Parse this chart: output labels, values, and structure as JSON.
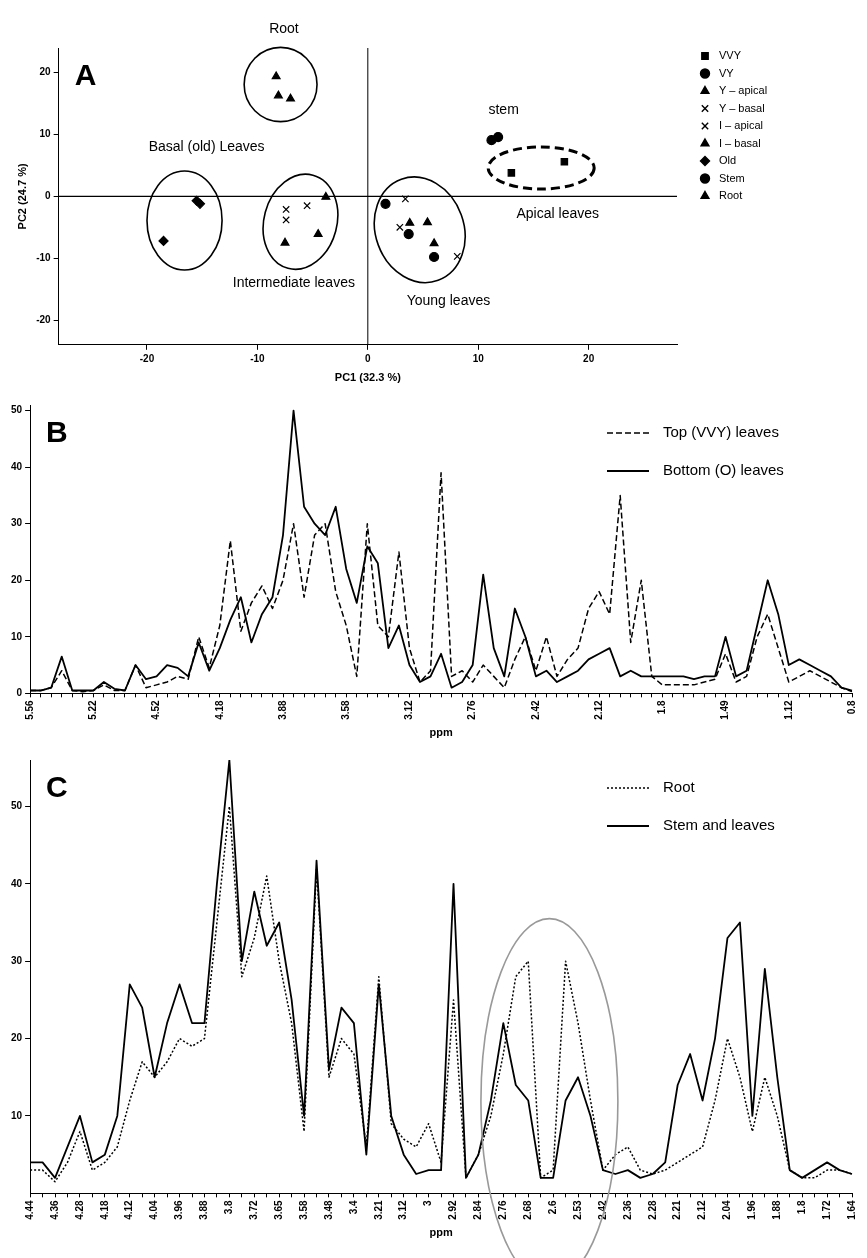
{
  "chart_data": [
    {
      "type": "scatter",
      "title": "A",
      "xlabel": "PC1 (32.3 %)",
      "ylabel": "PC2 (24.7 %)",
      "xlim": [
        -28,
        28
      ],
      "ylim": [
        -24,
        24
      ],
      "xticks": [
        -20,
        -10,
        0,
        10,
        20
      ],
      "yticks": [
        -20,
        -10,
        0,
        10,
        20
      ],
      "legend": "right",
      "series": [
        {
          "name": "VVY",
          "color": "#000000",
          "marker": "square",
          "x": [
            13.0,
            17.8
          ],
          "values": [
            3.8,
            5.6
          ]
        },
        {
          "name": "VY",
          "color": "#000000",
          "marker": "circle",
          "x": [
            1.6,
            3.7,
            6.0
          ],
          "values": [
            -1.2,
            -6.1,
            -9.8
          ]
        },
        {
          "name": "Y – apical",
          "color": "#000000",
          "marker": "triangle",
          "x": [
            3.8,
            5.4,
            6.0
          ],
          "values": [
            -4.3,
            -4.2,
            -7.6
          ]
        },
        {
          "name": "Y – basal",
          "color": "#000000",
          "marker": "cross",
          "x": [
            3.4,
            2.9,
            8.1
          ],
          "values": [
            -0.4,
            -5.0,
            -9.7
          ]
        },
        {
          "name": "I – apical",
          "color": "#000000",
          "marker": "cross",
          "x": [
            -7.4,
            -7.4,
            -5.5
          ],
          "values": [
            -2.1,
            -3.8,
            -1.5
          ]
        },
        {
          "name": "I – basal",
          "color": "#000000",
          "marker": "triangle",
          "x": [
            -3.8,
            -4.5,
            -7.5
          ],
          "values": [
            -0.1,
            -6.1,
            -7.5
          ]
        },
        {
          "name": "Old",
          "color": "#000000",
          "marker": "diamond",
          "x": [
            -15.5,
            -15.2,
            -18.5
          ],
          "values": [
            -0.7,
            -1.2,
            -7.2
          ]
        },
        {
          "name": "Stem",
          "color": "#000000",
          "marker": "circle",
          "x": [
            11.2,
            11.8
          ],
          "values": [
            9.1,
            9.6
          ]
        },
        {
          "name": "Root",
          "color": "#000000",
          "marker": "triangle",
          "x": [
            -8.3,
            -8.1,
            -7.0
          ],
          "values": [
            19.4,
            16.3,
            15.8
          ]
        }
      ],
      "ref_lines": [
        {
          "axis": "x",
          "value": 0,
          "color": "#000000"
        },
        {
          "axis": "y",
          "value": 0,
          "color": "#000000"
        }
      ],
      "annotations": [
        "Root",
        "stem",
        "Basal (old) Leaves",
        "Intermediate leaves",
        "Young leaves",
        "Apical leaves"
      ]
    },
    {
      "type": "line",
      "title": "B",
      "xlabel": "ppm",
      "ylim": [
        0,
        51
      ],
      "yticks": [
        0,
        10,
        20,
        30,
        40,
        50
      ],
      "legend": "top right",
      "marker": "none",
      "categories": [
        "5.56",
        null,
        null,
        null,
        null,
        null,
        "5.22",
        null,
        null,
        null,
        null,
        null,
        "4.52",
        null,
        null,
        null,
        null,
        null,
        "4.18",
        null,
        null,
        null,
        null,
        null,
        "3.88",
        null,
        null,
        null,
        null,
        null,
        "3.58",
        null,
        null,
        null,
        null,
        null,
        "3.12",
        null,
        null,
        null,
        null,
        null,
        "2.76",
        null,
        null,
        null,
        null,
        null,
        "2.42",
        null,
        null,
        null,
        null,
        null,
        "2.12",
        null,
        null,
        null,
        null,
        null,
        "1.8",
        null,
        null,
        null,
        null,
        null,
        "1.49",
        null,
        null,
        null,
        null,
        null,
        "1.12",
        null,
        null,
        null,
        null,
        null,
        "0.8"
      ],
      "series": [
        {
          "name": "Top (VVY) leaves",
          "color": "#000000",
          "line_style": "dashed",
          "values": [
            0.5,
            0.5,
            1,
            4,
            0.5,
            0.3,
            0.5,
            1.5,
            0.5,
            0.5,
            5,
            1,
            1.5,
            2,
            3,
            2.5,
            10,
            4.5,
            12,
            27,
            11,
            16,
            19,
            15,
            20,
            30,
            17,
            28,
            30,
            18,
            12,
            3,
            30,
            12,
            10,
            25,
            8,
            2,
            4,
            39,
            3,
            4,
            2,
            5,
            3,
            1,
            6,
            10,
            4,
            10,
            3,
            6,
            8,
            15,
            18,
            14,
            35,
            9,
            20,
            3,
            1.5,
            1.5,
            1.5,
            1.5,
            2,
            2.5,
            7,
            2,
            3,
            10,
            14,
            8,
            2,
            3,
            4,
            3,
            2,
            1,
            0.3
          ]
        },
        {
          "name": "Bottom (O) leaves",
          "color": "#000000",
          "line_style": "solid",
          "values": [
            0.5,
            0.5,
            1,
            6.5,
            0.5,
            0.5,
            0.5,
            2,
            0.8,
            0.5,
            5,
            2.5,
            3,
            5,
            4.5,
            3,
            9,
            4,
            8,
            13,
            17,
            9,
            14,
            17,
            28,
            50,
            33,
            30,
            28,
            33,
            22,
            16,
            26,
            23,
            8,
            12,
            5,
            2,
            3,
            7,
            1,
            2,
            5,
            21,
            8,
            3,
            15,
            10,
            3,
            4,
            2,
            3,
            4,
            6,
            7,
            8,
            3,
            4,
            3,
            3,
            3,
            3,
            3,
            2.5,
            3,
            3,
            10,
            3,
            4,
            12,
            20,
            14,
            5,
            6,
            5,
            4,
            3,
            1,
            0.5
          ]
        }
      ]
    },
    {
      "type": "line",
      "title": "C",
      "xlabel": "ppm",
      "ylim": [
        0,
        56
      ],
      "yticks": [
        10,
        20,
        30,
        40,
        50
      ],
      "legend": "top right",
      "marker": "none",
      "categories": [
        "4.44",
        null,
        "4.36",
        null,
        "4.28",
        null,
        "4.18",
        null,
        "4.12",
        null,
        "4.04",
        null,
        "3.96",
        null,
        "3.88",
        null,
        "3.8",
        null,
        "3.72",
        null,
        "3.65",
        null,
        "3.58",
        null,
        "3.48",
        null,
        "3.4",
        null,
        "3.21",
        null,
        "3.12",
        null,
        "3",
        null,
        "2.92",
        null,
        "2.84",
        null,
        "2.76",
        null,
        "2.68",
        null,
        "2.6",
        null,
        "2.53",
        null,
        "2.42",
        null,
        "2.36",
        null,
        "2.28",
        null,
        "2.21",
        null,
        "2.12",
        null,
        "2.04",
        null,
        "1.96",
        null,
        "1.88",
        null,
        "1.8",
        null,
        "1.72",
        null,
        "1.64"
      ],
      "series": [
        {
          "name": "Root",
          "color": "#000000",
          "line_style": "dotted",
          "values": [
            3,
            3,
            1.5,
            4,
            8,
            3,
            4,
            6,
            12,
            17,
            15,
            17,
            20,
            19,
            20,
            35,
            50,
            28,
            33,
            41,
            30,
            22,
            8,
            42,
            15,
            20,
            18,
            6,
            28,
            9,
            7,
            6,
            9,
            4,
            25,
            2,
            5,
            10,
            18,
            28,
            30,
            2,
            3,
            30,
            22,
            12,
            3,
            5,
            6,
            3,
            2.5,
            3,
            4,
            5,
            6,
            12,
            20,
            15,
            8,
            15,
            10,
            3,
            2,
            2,
            3,
            3,
            2.5
          ]
        },
        {
          "name": "Stem and leaves",
          "color": "#000000",
          "line_style": "solid",
          "values": [
            4,
            4,
            2,
            6,
            10,
            4,
            5,
            10,
            27,
            24,
            15,
            22,
            27,
            22,
            22,
            40,
            56,
            30,
            39,
            32,
            35,
            25,
            10,
            43,
            16,
            24,
            22,
            5,
            27,
            10,
            5,
            2.5,
            3,
            3,
            40,
            2,
            5,
            12,
            22,
            14,
            12,
            2,
            2,
            12,
            15,
            10,
            3,
            2.5,
            3,
            2,
            2.5,
            4,
            14,
            18,
            12,
            20,
            33,
            35,
            10,
            29,
            15,
            3,
            2,
            3,
            4,
            3,
            2.5
          ]
        }
      ]
    }
  ]
}
